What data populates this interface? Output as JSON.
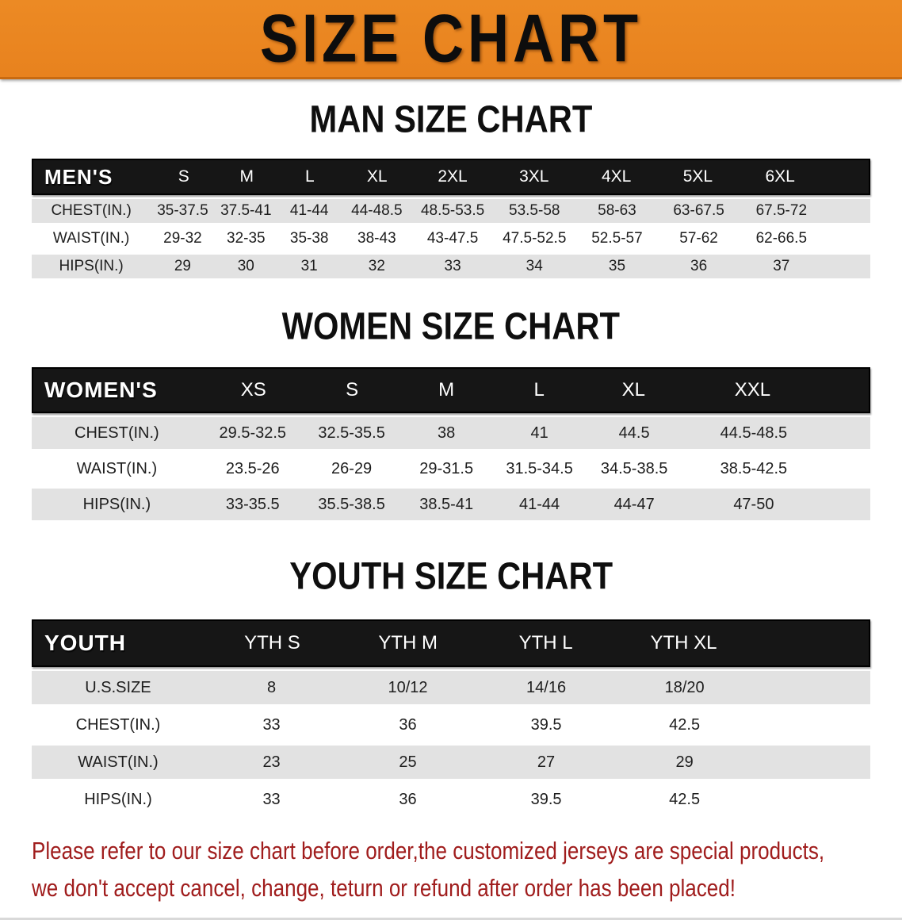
{
  "banner": {
    "title": "SIZE CHART"
  },
  "colors": {
    "banner_bg": "#e8821e",
    "table_header_bg": "#161616",
    "stripe_bg": "#e2e2e2",
    "disclaimer_text": "#a01d1d"
  },
  "chart_data": [
    {
      "type": "table",
      "title": "MAN SIZE CHART",
      "group_label": "MEN'S",
      "columns": [
        "S",
        "M",
        "L",
        "XL",
        "2XL",
        "3XL",
        "4XL",
        "5XL",
        "6XL"
      ],
      "rows": [
        {
          "label": "CHEST(IN.)",
          "values": [
            "35-37.5",
            "37.5-41",
            "41-44",
            "44-48.5",
            "48.5-53.5",
            "53.5-58",
            "58-63",
            "63-67.5",
            "67.5-72"
          ]
        },
        {
          "label": "WAIST(IN.)",
          "values": [
            "29-32",
            "32-35",
            "35-38",
            "38-43",
            "43-47.5",
            "47.5-52.5",
            "52.5-57",
            "57-62",
            "62-66.5"
          ]
        },
        {
          "label": "HIPS(IN.)",
          "values": [
            "29",
            "30",
            "31",
            "32",
            "33",
            "34",
            "35",
            "36",
            "37"
          ]
        }
      ]
    },
    {
      "type": "table",
      "title": "WOMEN SIZE CHART",
      "group_label": "WOMEN'S",
      "columns": [
        "XS",
        "S",
        "M",
        "L",
        "XL",
        "XXL"
      ],
      "rows": [
        {
          "label": "CHEST(IN.)",
          "values": [
            "29.5-32.5",
            "32.5-35.5",
            "38",
            "41",
            "44.5",
            "44.5-48.5"
          ]
        },
        {
          "label": "WAIST(IN.)",
          "values": [
            "23.5-26",
            "26-29",
            "29-31.5",
            "31.5-34.5",
            "34.5-38.5",
            "38.5-42.5"
          ]
        },
        {
          "label": "HIPS(IN.)",
          "values": [
            "33-35.5",
            "35.5-38.5",
            "38.5-41",
            "41-44",
            "44-47",
            "47-50"
          ]
        }
      ]
    },
    {
      "type": "table",
      "title": "YOUTH SIZE CHART",
      "group_label": "YOUTH",
      "columns": [
        "YTH S",
        "YTH M",
        "YTH L",
        "YTH XL"
      ],
      "rows": [
        {
          "label": "U.S.SIZE",
          "values": [
            "8",
            "10/12",
            "14/16",
            "18/20"
          ]
        },
        {
          "label": "CHEST(IN.)",
          "values": [
            "33",
            "36",
            "39.5",
            "42.5"
          ]
        },
        {
          "label": "WAIST(IN.)",
          "values": [
            "23",
            "25",
            "27",
            "29"
          ]
        },
        {
          "label": "HIPS(IN.)",
          "values": [
            "33",
            "36",
            "39.5",
            "42.5"
          ]
        }
      ]
    }
  ],
  "disclaimer": {
    "line1": "Please refer to our size chart before order,the customized jerseys are special products,",
    "line2": "we don't accept cancel, change, teturn or refund after order has been placed!"
  }
}
